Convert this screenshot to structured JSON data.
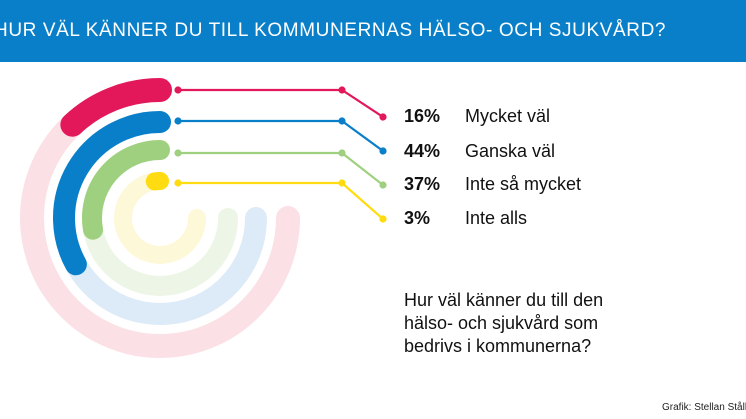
{
  "header": {
    "title": "HUR VÄL KÄNNER DU TILL KOMMUNERNAS HÄLSO- OCH SJUKVÅRD?"
  },
  "chart_data": {
    "type": "radial-bar",
    "title": "HUR VÄL KÄNNER DU TILL KOMMUNERNAS HÄLSO- OCH SJUKVÅRD?",
    "unit": "%",
    "max": 100,
    "series": [
      {
        "name": "Mycket väl",
        "value": 16,
        "label": "16%",
        "color": "#e2185b",
        "track": "#fbe0e6"
      },
      {
        "name": "Ganska väl",
        "value": 44,
        "label": "44%",
        "color": "#0a7fc9",
        "track": "#dcebf7"
      },
      {
        "name": "Inte så mycket",
        "value": 37,
        "label": "37%",
        "color": "#9fd07f",
        "track": "#edf6e6"
      },
      {
        "name": "Inte alls",
        "value": 3,
        "label": "3%",
        "color": "#ffdb12",
        "track": "#fdf8d8"
      }
    ]
  },
  "question": {
    "lines": [
      "Hur väl känner du till den",
      "hälso- och sjukvård som",
      "bedrivs i kommunerna?"
    ]
  },
  "credit": "Grafik: Stellan Stålbrand"
}
